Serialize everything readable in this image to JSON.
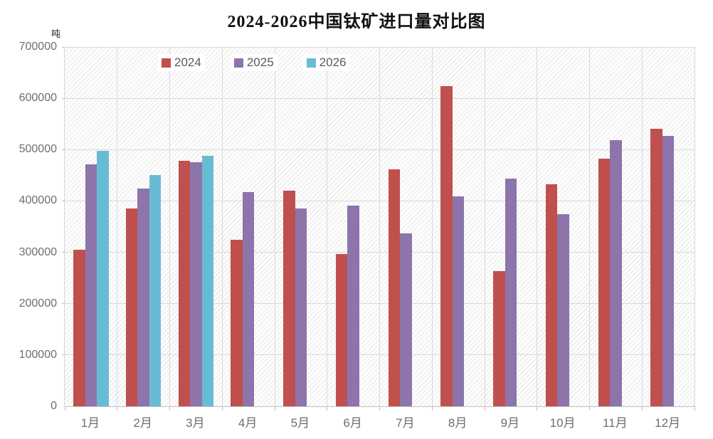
{
  "chart_data": {
    "type": "bar",
    "title": "2024-2026中国钛矿进口量对比图",
    "ylabel": "吨",
    "xlabel": "",
    "categories": [
      "1月",
      "2月",
      "3月",
      "4月",
      "5月",
      "6月",
      "7月",
      "8月",
      "9月",
      "10月",
      "11月",
      "12月"
    ],
    "series": [
      {
        "name": "2024",
        "color": "#c0504d",
        "values": [
          305000,
          386000,
          478000,
          325000,
          420000,
          297000,
          462000,
          624000,
          264000,
          432000,
          483000,
          541000
        ]
      },
      {
        "name": "2025",
        "color": "#8d74ab",
        "values": [
          472000,
          424000,
          475000,
          417000,
          385000,
          391000,
          337000,
          409000,
          444000,
          374000,
          519000,
          527000
        ]
      },
      {
        "name": "2026",
        "color": "#67bcd3",
        "values": [
          497000,
          450000,
          488000,
          null,
          null,
          null,
          null,
          null,
          null,
          null,
          null,
          null
        ]
      }
    ],
    "ylim": [
      0,
      700000
    ],
    "ytick_step": 100000,
    "yticks": [
      "0",
      "100000",
      "200000",
      "300000",
      "400000",
      "500000",
      "600000",
      "700000"
    ],
    "grid": true,
    "legend_position": "top",
    "plot_background": "diagonal-hatch",
    "gridline_color": "#d9d9d9"
  }
}
